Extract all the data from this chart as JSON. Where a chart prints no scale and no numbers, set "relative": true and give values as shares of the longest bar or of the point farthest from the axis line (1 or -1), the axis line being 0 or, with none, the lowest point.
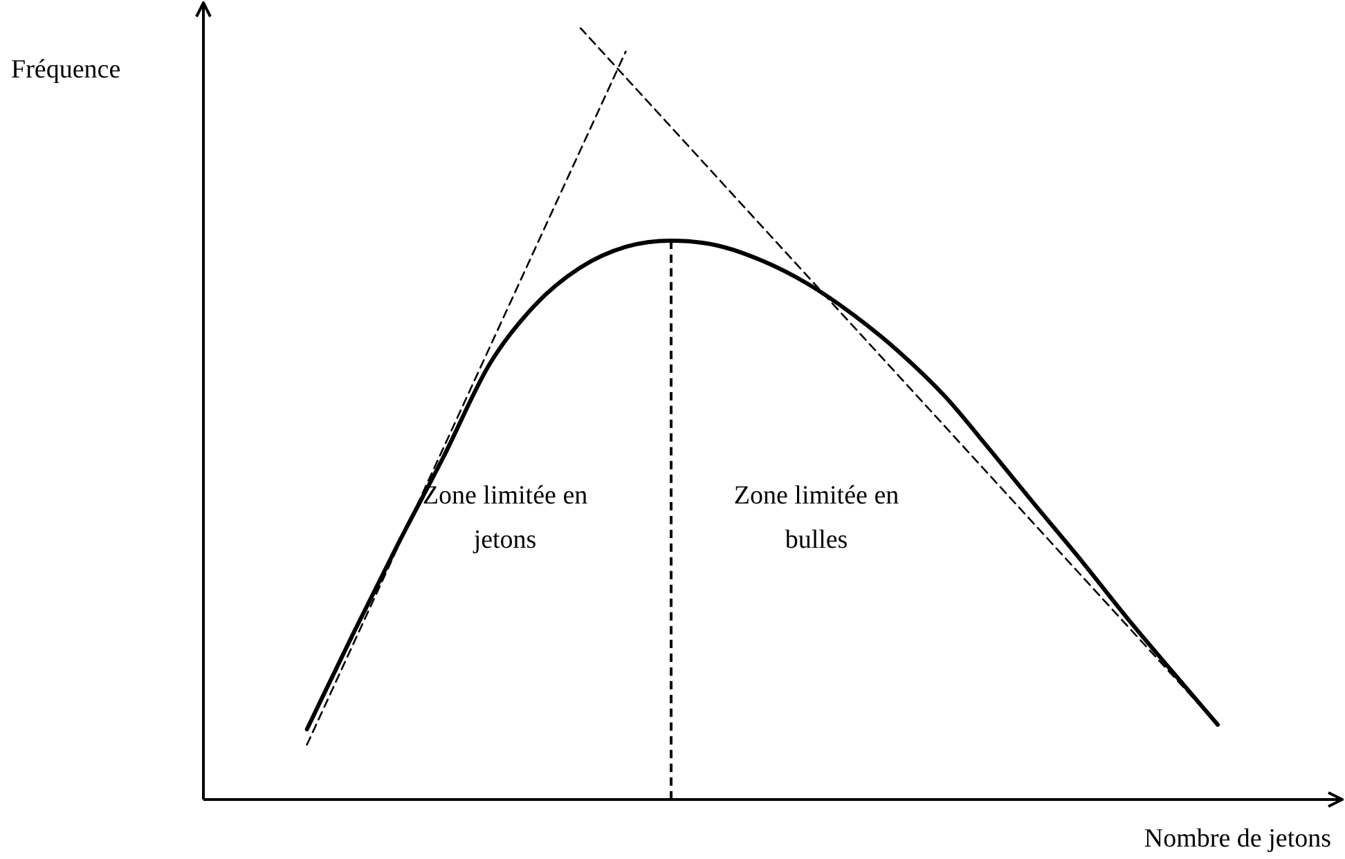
{
  "chart_data": {
    "type": "line",
    "relative": true,
    "xlabel": "Nombre de jetons",
    "ylabel": "Fréquence",
    "legend": false,
    "marker": "none",
    "categories": [
      null,
      null,
      null,
      null,
      null,
      null,
      null,
      null,
      null,
      null,
      null,
      null,
      null,
      null,
      null,
      null,
      null,
      null,
      null,
      null,
      null,
      null,
      null
    ],
    "series": [
      {
        "color": "#000000",
        "line_style": "solid",
        "values": [
          null,
          null,
          0.091,
          0.213,
          0.331,
          0.444,
          0.563,
          0.64,
          0.689,
          0.716,
          0.724,
          0.718,
          0.698,
          0.668,
          0.628,
          0.58,
          0.523,
          0.453,
          0.381,
          0.31,
          0.236,
          0.166,
          0.097
        ]
      },
      {
        "color": "#000000",
        "line_style": "dashed",
        "values": [
          null,
          null,
          0.071,
          null,
          null,
          null,
          null,
          null,
          null,
          0.969,
          null,
          null,
          null,
          null,
          null,
          null,
          null,
          null,
          null,
          null,
          null,
          null,
          null
        ]
      },
      {
        "color": "#000000",
        "line_style": "dashed",
        "values": [
          null,
          null,
          null,
          null,
          null,
          null,
          null,
          null,
          1.0,
          null,
          null,
          null,
          null,
          null,
          null,
          null,
          null,
          null,
          null,
          null,
          null,
          null,
          0.097
        ]
      }
    ],
    "annotations": [
      "Zone limitée en jetons",
      "Zone limitée en bulles"
    ]
  }
}
